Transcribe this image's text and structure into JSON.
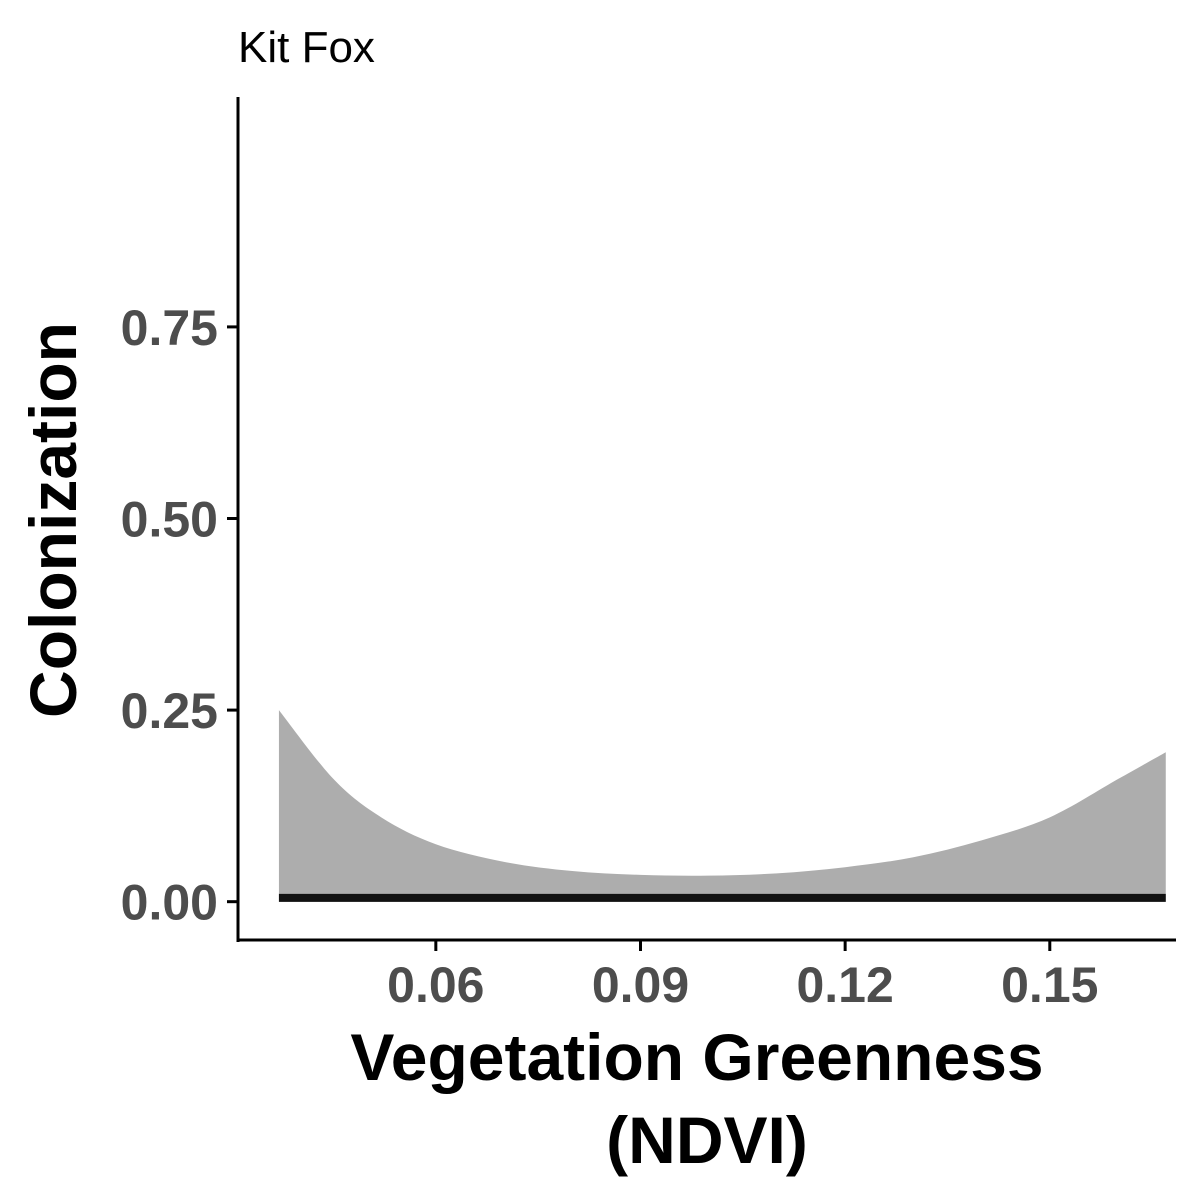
{
  "chart_data": {
    "type": "line",
    "title": "Kit Fox",
    "xlabel_lines": [
      "Vegetation Greenness",
      "(NDVI)"
    ],
    "ylabel": "Colonization",
    "xlim": [
      0.031,
      0.1685
    ],
    "ylim": [
      -0.05,
      1.05
    ],
    "x_ticks": [
      0.06,
      0.09,
      0.12,
      0.15
    ],
    "x_tick_labels": [
      "0.06",
      "0.09",
      "0.12",
      "0.15"
    ],
    "y_ticks": [
      0.0,
      0.25,
      0.5,
      0.75
    ],
    "y_tick_labels": [
      "0.00",
      "0.25",
      "0.50",
      "0.75"
    ],
    "grid": false,
    "colors": {
      "line": "#111111",
      "ribbon": "#adadad",
      "axis": "#000000",
      "tick_text": "#4d4d4d"
    },
    "series": [
      {
        "x": [
          0.037,
          0.045,
          0.052,
          0.06,
          0.07,
          0.08,
          0.09,
          0.1,
          0.11,
          0.12,
          0.13,
          0.14,
          0.15,
          0.16,
          0.167
        ],
        "values": [
          0.005,
          0.005,
          0.005,
          0.005,
          0.005,
          0.005,
          0.005,
          0.005,
          0.005,
          0.005,
          0.005,
          0.005,
          0.005,
          0.005,
          0.005
        ],
        "upper": [
          0.25,
          0.16,
          0.11,
          0.075,
          0.052,
          0.04,
          0.035,
          0.034,
          0.037,
          0.045,
          0.058,
          0.08,
          0.11,
          0.16,
          0.195
        ],
        "lower": [
          0.0,
          0.0,
          0.0,
          0.0,
          0.0,
          0.0,
          0.0,
          0.0,
          0.0,
          0.0,
          0.0,
          0.0,
          0.0,
          0.0,
          0.0
        ]
      }
    ]
  }
}
